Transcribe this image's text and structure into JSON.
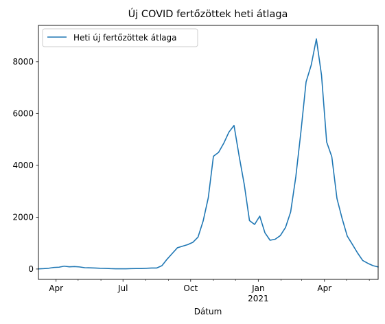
{
  "chart_data": {
    "type": "line",
    "title": "Új COVID fertőzöttek heti átlaga",
    "xlabel": "Dátum",
    "ylabel": "",
    "ylim": [
      -400,
      9400
    ],
    "xlim": [
      "2020-03-08",
      "2021-06-13"
    ],
    "x_ticks": [
      {
        "date": "2020-04-01",
        "label": "Apr",
        "sublabel": ""
      },
      {
        "date": "2020-07-01",
        "label": "Jul",
        "sublabel": ""
      },
      {
        "date": "2020-10-01",
        "label": "Oct",
        "sublabel": ""
      },
      {
        "date": "2021-01-01",
        "label": "Jan",
        "sublabel": "2021"
      },
      {
        "date": "2021-04-01",
        "label": "Apr",
        "sublabel": ""
      }
    ],
    "minor_ticks": [
      "2020-05-01",
      "2020-06-01",
      "2020-08-01",
      "2020-09-01",
      "2020-11-01",
      "2020-12-01",
      "2021-02-01",
      "2021-03-01",
      "2021-05-01",
      "2021-06-01"
    ],
    "y_ticks": [
      0,
      2000,
      4000,
      6000,
      8000
    ],
    "legend": {
      "position": "top-left",
      "entries": [
        "Heti új fertőzöttek átlaga"
      ]
    },
    "grid": false,
    "line_color": "#1f77b4",
    "series": [
      {
        "name": "Heti új fertőzöttek átlaga",
        "x": [
          "2020-03-08",
          "2020-03-15",
          "2020-03-22",
          "2020-03-29",
          "2020-04-05",
          "2020-04-12",
          "2020-04-19",
          "2020-04-26",
          "2020-05-03",
          "2020-05-10",
          "2020-05-17",
          "2020-05-24",
          "2020-05-31",
          "2020-06-07",
          "2020-06-14",
          "2020-06-21",
          "2020-06-28",
          "2020-07-05",
          "2020-07-12",
          "2020-07-19",
          "2020-07-26",
          "2020-08-02",
          "2020-08-09",
          "2020-08-16",
          "2020-08-23",
          "2020-08-30",
          "2020-09-06",
          "2020-09-13",
          "2020-09-20",
          "2020-09-27",
          "2020-10-04",
          "2020-10-11",
          "2020-10-18",
          "2020-10-25",
          "2020-11-01",
          "2020-11-08",
          "2020-11-15",
          "2020-11-22",
          "2020-11-29",
          "2020-12-06",
          "2020-12-13",
          "2020-12-20",
          "2020-12-27",
          "2021-01-03",
          "2021-01-10",
          "2021-01-17",
          "2021-01-24",
          "2021-01-31",
          "2021-02-07",
          "2021-02-14",
          "2021-02-21",
          "2021-02-28",
          "2021-03-07",
          "2021-03-14",
          "2021-03-21",
          "2021-03-28",
          "2021-04-04",
          "2021-04-11",
          "2021-04-18",
          "2021-04-25",
          "2021-05-02",
          "2021-05-09",
          "2021-05-16",
          "2021-05-23",
          "2021-05-30",
          "2021-06-06",
          "2021-06-13"
        ],
        "values": [
          5,
          15,
          30,
          60,
          70,
          110,
          85,
          95,
          80,
          50,
          45,
          40,
          30,
          25,
          15,
          10,
          10,
          10,
          15,
          20,
          20,
          30,
          40,
          40,
          130,
          380,
          600,
          820,
          880,
          940,
          1030,
          1230,
          1850,
          2750,
          4350,
          4500,
          4850,
          5280,
          5540,
          4350,
          3250,
          1870,
          1720,
          2040,
          1400,
          1110,
          1150,
          1290,
          1600,
          2200,
          3550,
          5300,
          7220,
          7870,
          8880,
          7480,
          4900,
          4330,
          2720,
          1950,
          1270,
          950,
          620,
          330,
          220,
          130,
          80
        ]
      }
    ]
  }
}
